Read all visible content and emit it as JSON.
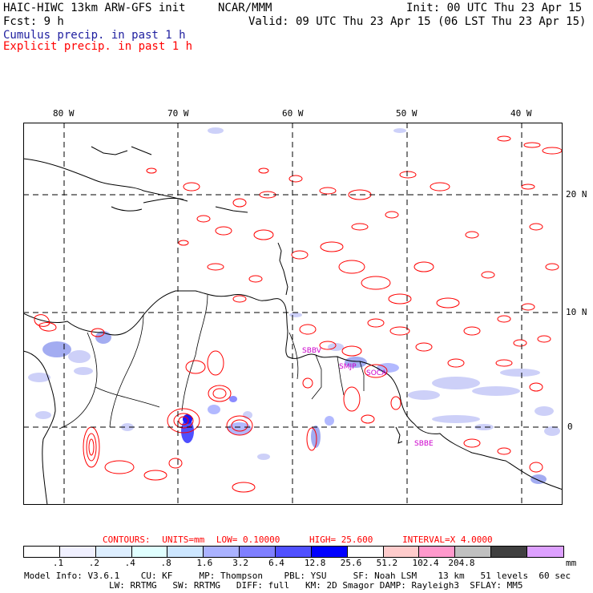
{
  "header": {
    "model": "HAIC-HIWC 13km ARW-GFS init",
    "org": "NCAR/MMM",
    "init": "Init: 00 UTC Thu 23 Apr 15",
    "fcst": "Fcst:    9 h",
    "valid": "Valid: 09 UTC Thu 23 Apr 15 (06 LST Thu 23 Apr 15)",
    "cumulus_label": "Cumulus precip. in past 1 h",
    "explicit_label": "Explicit precip. in past 1 h"
  },
  "colors": {
    "cumulus": "#2020a0",
    "explicit": "#ff0000",
    "contour": "#ff0000",
    "station": "#cc00cc"
  },
  "map": {
    "lon_labels": [
      "80 W",
      "70 W",
      "60 W",
      "50 W",
      "40 W"
    ],
    "lat_labels": [
      "20 N",
      "10 N",
      "0"
    ],
    "stations": [
      "SBBV",
      "SMJP",
      "SOCA",
      "SBBE"
    ]
  },
  "contours_line": {
    "prefix": "CONTOURS:",
    "units": "UNITS=mm",
    "low": "LOW= 0.10000",
    "high": "HIGH=  25.600",
    "interval": "INTERVAL=X  4.0000"
  },
  "colorbar": {
    "colors": [
      "#ffffff",
      "#f0f0ff",
      "#ddeeff",
      "#e0ffff",
      "#cce6ff",
      "#aab2ff",
      "#7f7fff",
      "#5050ff",
      "#0000ff",
      "#ffffff",
      "#ffcccc",
      "#ff99cc",
      "#c0c0c0",
      "#404040",
      "#dda0ff"
    ],
    "ticks": [
      ".1",
      ".2",
      ".4",
      ".8",
      "1.6",
      "3.2",
      "6.4",
      "12.8",
      "25.6",
      "51.2",
      "102.4",
      "204.8"
    ],
    "unit": "mm"
  },
  "model_info": {
    "line1": "Model Info: V3.6.1    CU: KF     MP: Thompson    PBL: YSU     SF: Noah LSM    13 km   51 levels  60 sec",
    "line2": "                LW: RRTMG   SW: RRTMG   DIFF: full   KM: 2D Smagor DAMP: Rayleigh3  SFLAY: MM5"
  }
}
